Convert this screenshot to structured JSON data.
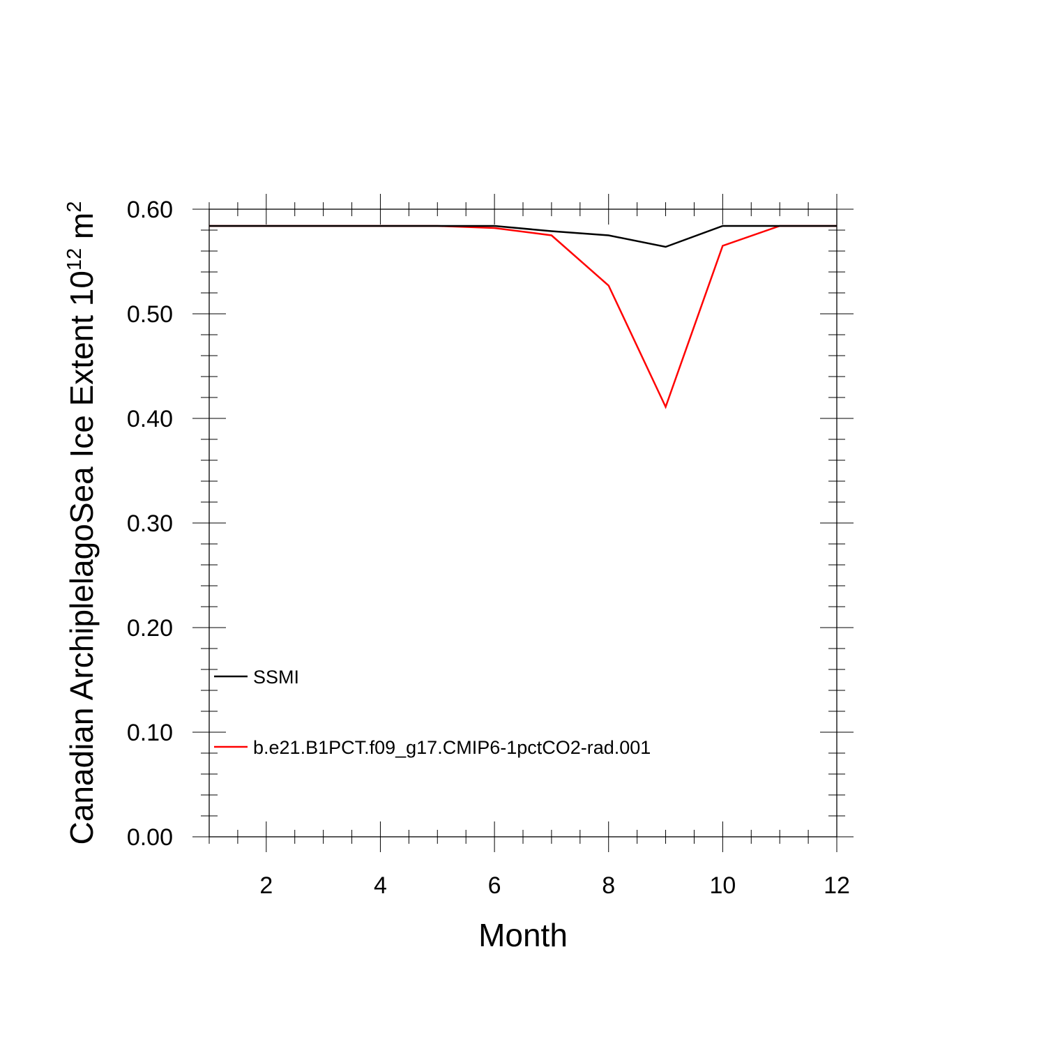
{
  "chart_data": {
    "type": "line",
    "title": "",
    "xlabel": "Month",
    "ylabel": "Canadian ArchiplelagoSea Ice Extent 10",
    "ylabel_sup": "12",
    "ylabel_unit": " m",
    "ylabel_unit_sup": "2",
    "xlim": [
      1,
      12
    ],
    "ylim": [
      0.0,
      0.6
    ],
    "xticks": [
      2,
      4,
      6,
      8,
      10,
      12
    ],
    "xtick_labels": [
      "2",
      "4",
      "6",
      "8",
      "10",
      "12"
    ],
    "yticks": [
      0.0,
      0.1,
      0.2,
      0.3,
      0.4,
      0.5,
      0.6
    ],
    "ytick_labels": [
      "0.00",
      "0.10",
      "0.20",
      "0.30",
      "0.40",
      "0.50",
      "0.60"
    ],
    "grid": false,
    "legend_position": "bottom-left",
    "x": [
      1,
      2,
      3,
      4,
      5,
      6,
      7,
      8,
      9,
      10,
      11,
      12
    ],
    "series": [
      {
        "name": "SSMI",
        "color": "#000000",
        "values": [
          0.584,
          0.584,
          0.584,
          0.584,
          0.584,
          0.584,
          0.579,
          0.575,
          0.564,
          0.584,
          0.584,
          0.584
        ]
      },
      {
        "name": "b.e21.B1PCT.f09_g17.CMIP6-1pctCO2-rad.001",
        "color": "#ff0000",
        "values": [
          0.584,
          0.584,
          0.584,
          0.584,
          0.584,
          0.582,
          0.575,
          0.527,
          0.411,
          0.565,
          0.584,
          0.584
        ]
      }
    ]
  }
}
